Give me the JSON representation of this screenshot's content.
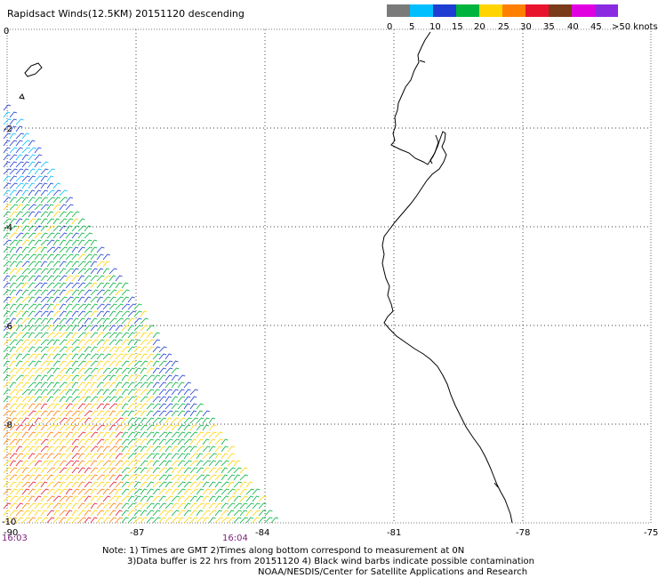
{
  "title": "Rapidsact Winds(12.5KM) 20151120 descending",
  "colorbar": {
    "colors": [
      "#7a7a7a",
      "#00bfff",
      "#1e3dd2",
      "#00b33c",
      "#ffd400",
      "#ff7f00",
      "#e8142d",
      "#7a3b1a",
      "#e000e0",
      "#8a2be2"
    ],
    "labels": [
      "0",
      "5",
      "10",
      "15",
      "20",
      "25",
      "30",
      "35",
      "40",
      "45",
      ">50 knots"
    ]
  },
  "axes": {
    "x_ticks": [
      "-90",
      "-87",
      "-84",
      "-81",
      "-78",
      "-75"
    ],
    "y_ticks": [
      "0",
      "-2",
      "-4",
      "-6",
      "-8",
      "-10"
    ]
  },
  "times": {
    "left": "16:03",
    "right": "16:04"
  },
  "notes": {
    "line1": "Note: 1) Times are GMT 2)Times along bottom correspond to measurement at 0N",
    "line2": "3)Data buffer is 22 hrs from 20151120 4) Black wind barbs indicate possible contamination",
    "line3": "NOAA/NESDIS/Center for Satellite Applications and Research"
  }
}
